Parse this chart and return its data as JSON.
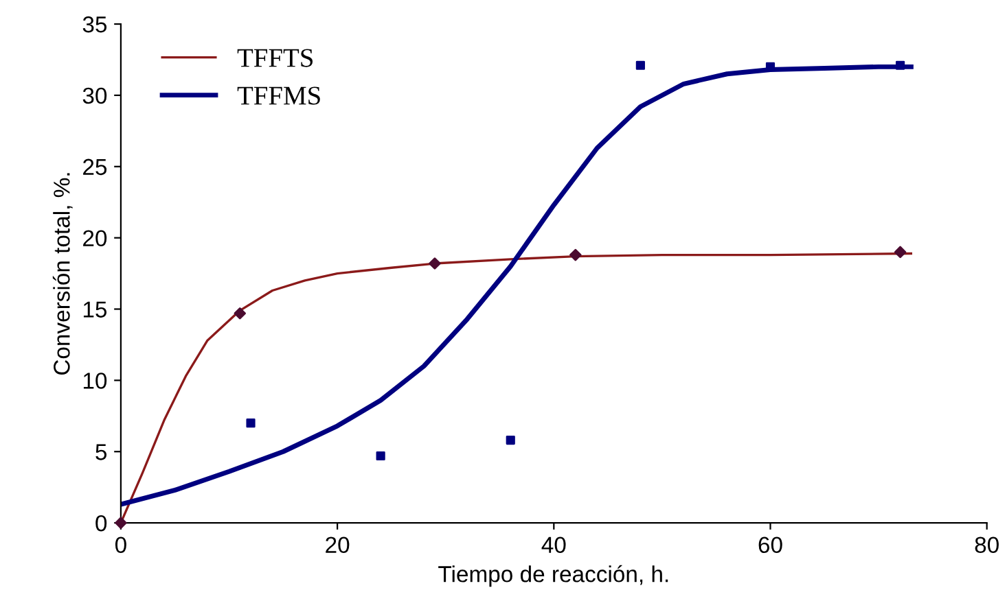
{
  "chart_data": {
    "type": "line",
    "xlabel": "Tiempo de reacción, h.",
    "ylabel": "Conversión total, %.",
    "xlim": [
      0,
      80
    ],
    "xticks": [
      0,
      20,
      40,
      60,
      80
    ],
    "ylim": [
      0,
      35
    ],
    "yticks": [
      0,
      5,
      10,
      15,
      20,
      25,
      30,
      35
    ],
    "grid": false,
    "legend": "top left",
    "series": [
      {
        "name": "TFFTS",
        "color": "#8b1a1a",
        "marker": "none",
        "x": [
          0,
          2,
          4,
          6,
          8,
          11,
          14,
          17,
          20,
          25,
          29,
          36,
          42,
          50,
          60,
          73
        ],
        "values": [
          0,
          3.5,
          7.2,
          10.3,
          12.8,
          14.9,
          16.3,
          17.0,
          17.5,
          17.9,
          18.2,
          18.5,
          18.7,
          18.8,
          18.8,
          18.9
        ]
      },
      {
        "name": "TFFMS",
        "color": "#000080",
        "marker": "none",
        "x": [
          0,
          5,
          10,
          15,
          20,
          24,
          28,
          32,
          36,
          40,
          44,
          48,
          52,
          56,
          60,
          65,
          70,
          73
        ],
        "values": [
          1.3,
          2.3,
          3.6,
          5.0,
          6.8,
          8.6,
          11.0,
          14.3,
          18.0,
          22.3,
          26.3,
          29.2,
          30.8,
          31.5,
          31.8,
          31.9,
          32.0,
          32.0
        ]
      },
      {
        "type": "scatter",
        "color": "#4b0b30",
        "marker": "diamond",
        "x": [
          0,
          11,
          29,
          42,
          72
        ],
        "values": [
          0,
          14.7,
          18.2,
          18.8,
          19.0
        ]
      },
      {
        "type": "scatter",
        "color": "#000080",
        "marker": "square",
        "x": [
          12,
          24,
          36,
          48,
          60,
          72
        ],
        "values": [
          7.0,
          4.7,
          5.8,
          32.1,
          32.0,
          32.1
        ]
      }
    ]
  }
}
